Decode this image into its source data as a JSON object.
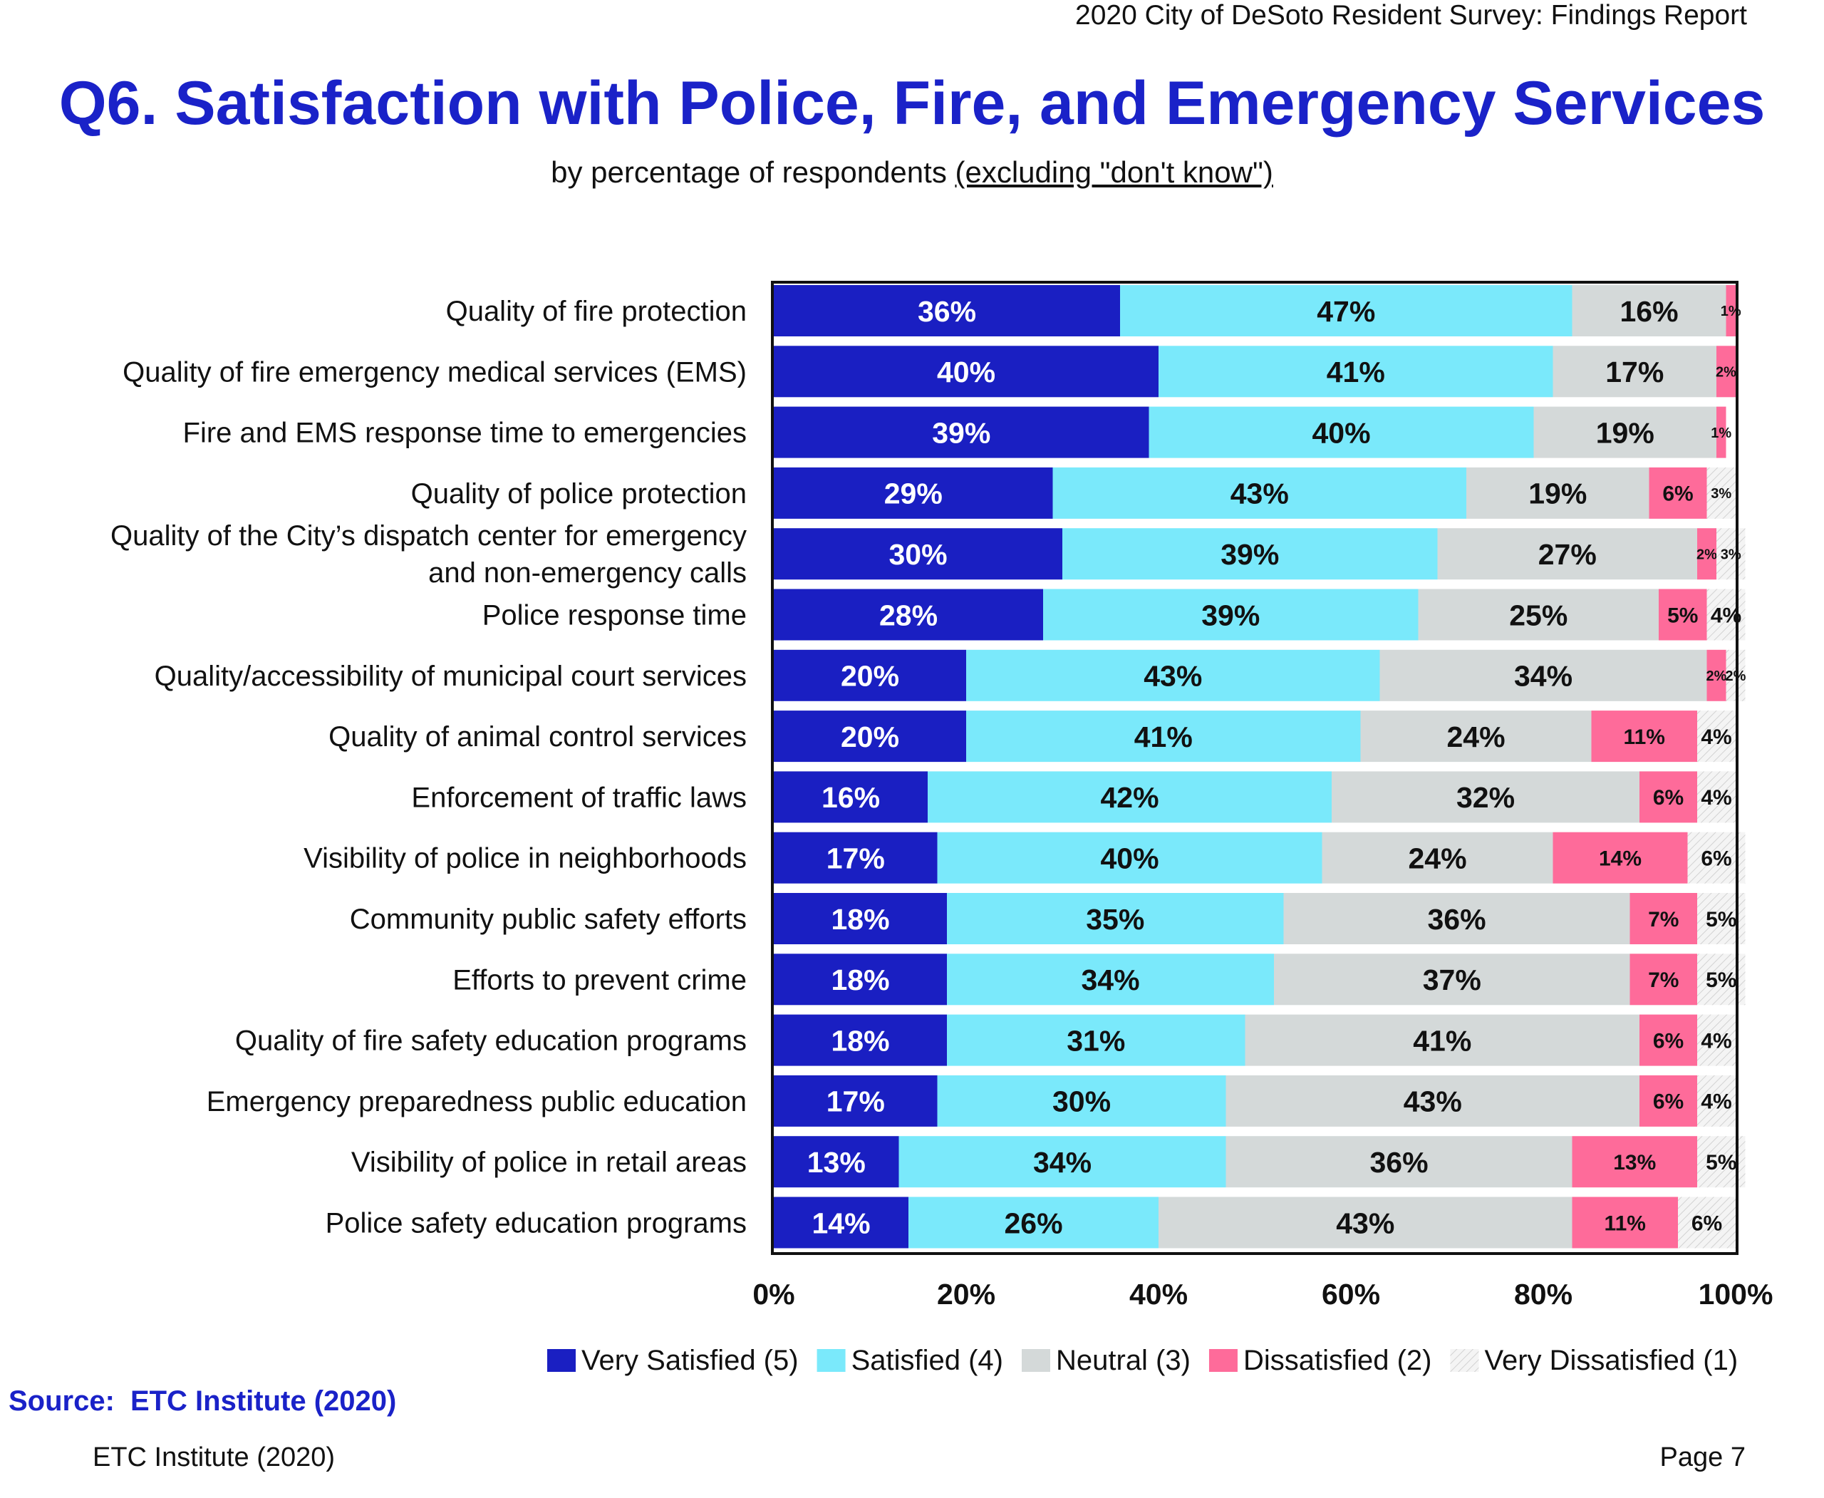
{
  "header": {
    "report": "2020 City of DeSoto Resident Survey:  Findings Report",
    "title": "Q6. Satisfaction with Police, Fire, and Emergency Services",
    "subtitle_prefix": "by percentage of respondents ",
    "subtitle_underlined": "(excluding \"don't know\")"
  },
  "footer": {
    "source_label": "Source:",
    "source_value": "ETC Institute (2020)",
    "left": "ETC Institute (2020)",
    "right": "Page 7"
  },
  "colors": {
    "very_satisfied": "#1a1fc2",
    "satisfied": "#7ae9fb",
    "neutral": "#d4d9d9",
    "dissatisfied": "#fe6b9a",
    "very_dissatisfied": "#f1f1f1",
    "title": "#1a22c8"
  },
  "chart_data": {
    "type": "bar",
    "orientation": "horizontal",
    "stacked": true,
    "xlim": [
      0,
      100
    ],
    "x_ticks": [
      "0%",
      "20%",
      "40%",
      "60%",
      "80%",
      "100%"
    ],
    "legend_position": "bottom",
    "categories": [
      [
        "Quality of fire protection"
      ],
      [
        "Quality of fire emergency medical services (EMS)"
      ],
      [
        "Fire and EMS response time to emergencies"
      ],
      [
        "Quality of police protection"
      ],
      [
        "Quality of the City’s dispatch center for emergency",
        "and non-emergency calls"
      ],
      [
        "Police response time"
      ],
      [
        "Quality/accessibility of municipal court services"
      ],
      [
        "Quality of animal control services"
      ],
      [
        "Enforcement of traffic laws"
      ],
      [
        "Visibility of police in neighborhoods"
      ],
      [
        "Community public safety efforts"
      ],
      [
        "Efforts to prevent crime"
      ],
      [
        "Quality of fire safety education programs"
      ],
      [
        "Emergency preparedness public education"
      ],
      [
        "Visibility of police in retail areas"
      ],
      [
        "Police safety education programs"
      ]
    ],
    "series": [
      {
        "name": "Very Satisfied (5)",
        "color": "#1a1fc2",
        "label_color": "#ffffff",
        "values": [
          36,
          40,
          39,
          29,
          30,
          28,
          20,
          20,
          16,
          17,
          18,
          18,
          18,
          17,
          13,
          14
        ]
      },
      {
        "name": "Satisfied (4)",
        "color": "#7ae9fb",
        "label_color": "#111111",
        "values": [
          47,
          41,
          40,
          43,
          39,
          39,
          43,
          41,
          42,
          40,
          35,
          34,
          31,
          30,
          34,
          26
        ]
      },
      {
        "name": "Neutral (3)",
        "color": "#d4d9d9",
        "label_color": "#111111",
        "values": [
          16,
          17,
          19,
          19,
          27,
          25,
          34,
          24,
          32,
          24,
          36,
          37,
          41,
          43,
          36,
          43
        ]
      },
      {
        "name": "Dissatisfied (2)",
        "color": "#fe6b9a",
        "label_color": "#111111",
        "values": [
          1,
          2,
          1,
          6,
          2,
          5,
          2,
          11,
          6,
          14,
          7,
          7,
          6,
          6,
          13,
          11
        ]
      },
      {
        "name": "Very Dissatisfied (1)",
        "color": "#f1f1f1",
        "label_color": "#111111",
        "values": [
          0,
          0,
          0,
          3,
          3,
          4,
          2,
          4,
          4,
          6,
          5,
          5,
          4,
          4,
          5,
          6
        ]
      }
    ]
  }
}
